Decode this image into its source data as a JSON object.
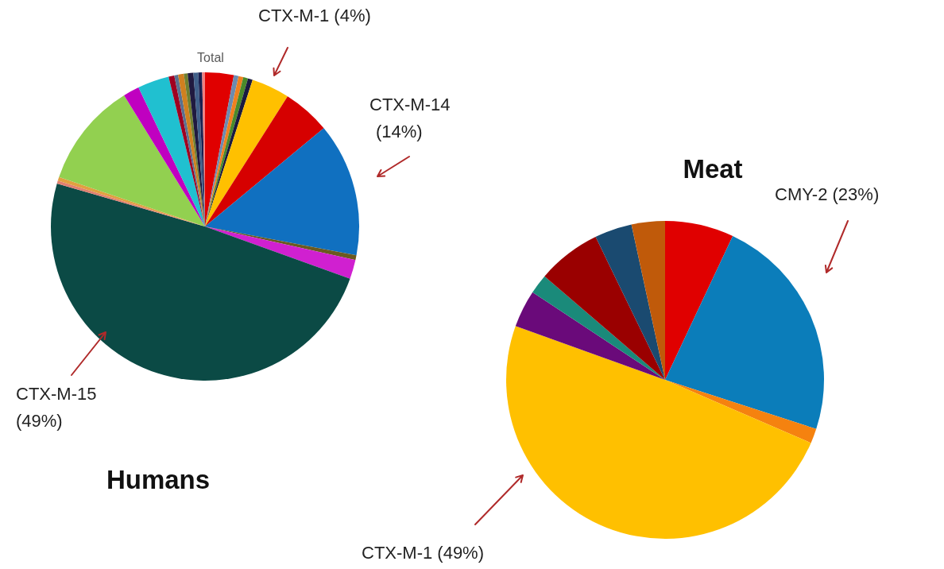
{
  "chart_data": [
    {
      "type": "pie",
      "title": "Humans",
      "subtitle": "Total",
      "categories": [
        null,
        null,
        null,
        null,
        null,
        "CTX-M-1",
        null,
        "CTX-M-14",
        null,
        null,
        "CTX-M-15",
        null,
        null,
        null,
        null,
        null,
        null,
        null,
        null,
        null,
        null,
        null,
        null,
        null
      ],
      "values": [
        3,
        0.5,
        0.5,
        0.5,
        0.5,
        4,
        5,
        14,
        0.5,
        2,
        49,
        0.3,
        0.4,
        11,
        1.7,
        3.3,
        0.6,
        0.4,
        0.6,
        0.4,
        0.6,
        0.5,
        0.4,
        0.3
      ],
      "value_labels": [
        null,
        null,
        null,
        null,
        null,
        "(4%)",
        null,
        "(14%)",
        null,
        null,
        "(49%)",
        null,
        null,
        null,
        null,
        null,
        null,
        null,
        null,
        null,
        null,
        null,
        null,
        null
      ],
      "colors": [
        "#e00000",
        "#6d8bb0",
        "#f08020",
        "#4a8a2a",
        "#1a1a40",
        "#ffc000",
        "#d60000",
        "#1070c0",
        "#6b5a20",
        "#d020d0",
        "#0b4a45",
        "#e08070",
        "#e0a040",
        "#92d050",
        "#c000c0",
        "#20c0d0",
        "#a00020",
        "#5a7090",
        "#d08020",
        "#708030",
        "#201a40",
        "#40608a",
        "#1a2050",
        "#f08080"
      ]
    },
    {
      "type": "pie",
      "title": "Meat",
      "categories": [
        null,
        "CMY-2",
        null,
        "CTX-M-1",
        null,
        null,
        null,
        null,
        null
      ],
      "values": [
        7,
        23,
        1.5,
        49,
        3.8,
        2,
        6.5,
        3.8,
        3.4
      ],
      "value_labels": [
        null,
        "(23%)",
        null,
        "(49%)",
        null,
        null,
        null,
        null,
        null
      ],
      "colors": [
        "#e00000",
        "#0b7dba",
        "#f5820f",
        "#ffc000",
        "#6a0a7a",
        "#1a8a7a",
        "#9a0000",
        "#1a4a70",
        "#c05a0a"
      ]
    }
  ]
}
